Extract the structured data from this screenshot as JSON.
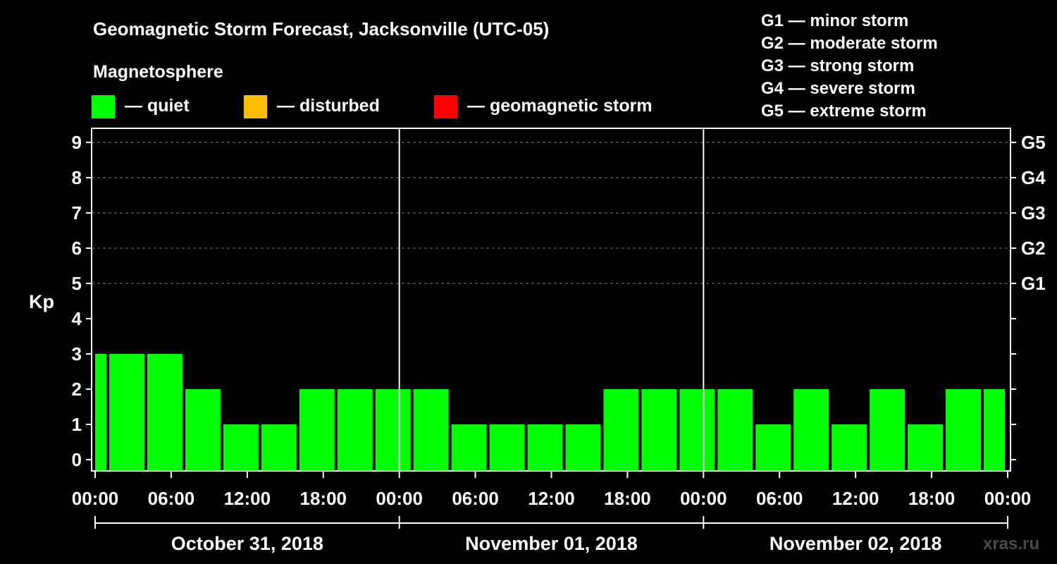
{
  "title": "Geomagnetic Storm Forecast, Jacksonville (UTC-05)",
  "legend": {
    "heading": "Magnetosphere",
    "items": [
      {
        "label": "— quiet",
        "color": "#00ff00"
      },
      {
        "label": "— disturbed",
        "color": "#ffbf00"
      },
      {
        "label": "— geomagnetic storm",
        "color": "#ff0000"
      }
    ]
  },
  "storm_scale": [
    "G1 — minor storm",
    "G2 — moderate storm",
    "G3 — strong storm",
    "G4 — severe storm",
    "G5 — extreme storm"
  ],
  "watermark": "xras.ru",
  "chart_data": {
    "type": "bar",
    "ylabel": "Kp",
    "ylim": [
      0,
      9
    ],
    "yticks": [
      "0",
      "1",
      "2",
      "3",
      "4",
      "5",
      "6",
      "7",
      "8",
      "9"
    ],
    "right_axis_ticks": [
      {
        "kp": 5,
        "label": "G1"
      },
      {
        "kp": 6,
        "label": "G2"
      },
      {
        "kp": 7,
        "label": "G3"
      },
      {
        "kp": 8,
        "label": "G4"
      },
      {
        "kp": 9,
        "label": "G5"
      }
    ],
    "x_tick_labels": [
      "00:00",
      "06:00",
      "12:00",
      "18:00",
      "00:00",
      "06:00",
      "12:00",
      "18:00",
      "00:00",
      "06:00",
      "12:00",
      "18:00",
      "00:00"
    ],
    "days": [
      "October 31, 2018",
      "November 01, 2018",
      "November 02, 2018"
    ],
    "grid": "dashed horizontal at Kp 5-9",
    "bar_color": "#00ff00",
    "interval_hours": 3,
    "first_bar_hours": 1,
    "series": [
      {
        "values": [
          3,
          3,
          3,
          2,
          1,
          1,
          2,
          2,
          2,
          2,
          1,
          1,
          1,
          1,
          2,
          2,
          2,
          2,
          1,
          2,
          1,
          2,
          1,
          2,
          2
        ]
      }
    ]
  }
}
